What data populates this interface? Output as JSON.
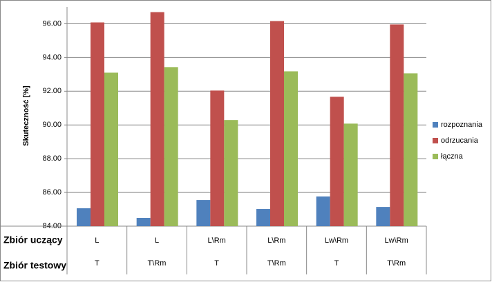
{
  "chart_data": {
    "type": "bar",
    "y_label": "Skuteczność [%]",
    "category_levels": [
      {
        "name": "Zbiór uczący",
        "labels": [
          "L",
          "L",
          "L\\Rm",
          "L\\Rm",
          "Lw\\Rm",
          "Lw\\Rm"
        ]
      },
      {
        "name": "Zbiór testowy",
        "labels": [
          "T",
          "T\\Rm",
          "T",
          "T\\Rm",
          "T",
          "T\\Rm"
        ]
      }
    ],
    "series": [
      {
        "name": "rozpoznania",
        "color": "#4f81bd",
        "values": [
          85.06,
          84.49,
          85.55,
          85.02,
          85.76,
          85.14
        ]
      },
      {
        "name": "odrzucania",
        "color": "#c0504d",
        "values": [
          96.08,
          96.69,
          92.04,
          96.16,
          91.67,
          95.96
        ]
      },
      {
        "name": "łączna",
        "color": "#9bbb59",
        "values": [
          93.1,
          93.43,
          90.29,
          93.18,
          90.08,
          93.06
        ]
      }
    ],
    "ylim": [
      84,
      97
    ],
    "yticks": [
      {
        "value": 84,
        "label": "84.00"
      },
      {
        "value": 86,
        "label": "86.00"
      },
      {
        "value": 88,
        "label": "88.00"
      },
      {
        "value": 90,
        "label": "90.00"
      },
      {
        "value": 92,
        "label": "92.00"
      },
      {
        "value": 94,
        "label": "94.00"
      },
      {
        "value": 96,
        "label": "96.00"
      }
    ],
    "grid": true,
    "legend": "right"
  }
}
